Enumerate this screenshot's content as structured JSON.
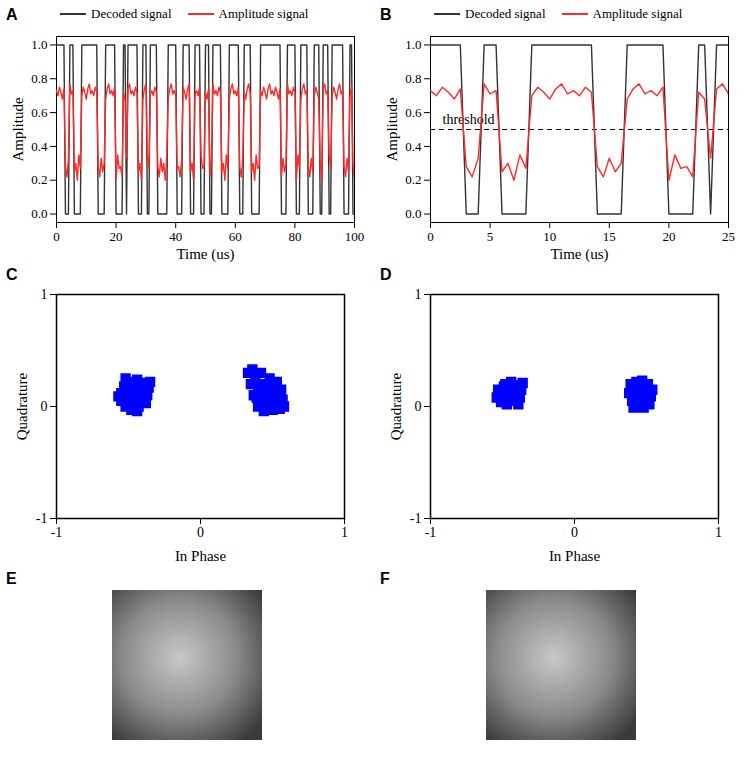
{
  "chart_data": [
    {
      "panel": "A",
      "type": "line",
      "x_label": "Time (us)",
      "y_label": "Amplitude",
      "xlim": [
        0,
        100
      ],
      "xticks": [
        0,
        20,
        40,
        60,
        80,
        100
      ],
      "ylim": [
        -0.05,
        1.05
      ],
      "yticks": [
        {
          "value": 0,
          "label": "0.0"
        },
        0.2,
        0.4,
        0.6,
        0.8,
        {
          "value": 1,
          "label": "1.0"
        }
      ],
      "legend": "top",
      "series": [
        {
          "name": "Decoded signal",
          "color": "#333333",
          "x": [
            0,
            2.5,
            3,
            4,
            4.5,
            5.5,
            6,
            8,
            8.5,
            13.5,
            14,
            16,
            16.5,
            19.5,
            20,
            22,
            22.5,
            23,
            23.5,
            24,
            27,
            27.5,
            28.5,
            29,
            30,
            30.5,
            31,
            31.5,
            33.5,
            34,
            37,
            37.5,
            40,
            40.5,
            42,
            42.5,
            44.5,
            45,
            46,
            46.5,
            48,
            48.5,
            49.5,
            50,
            51,
            51.5,
            52,
            52.5,
            55,
            55.5,
            57.5,
            58,
            61,
            61.5,
            62.5,
            63,
            65,
            65.5,
            68,
            68.5,
            75,
            75.5,
            77,
            77.5,
            80,
            80.5,
            81.5,
            82,
            84,
            84.5,
            86,
            86.5,
            88,
            88.5,
            89,
            89.5,
            91,
            91.5,
            92,
            92.5,
            96,
            96.5,
            98,
            98.5,
            99,
            99.5,
            100
          ],
          "values": [
            1,
            1,
            0,
            0,
            1,
            1,
            0,
            0,
            1,
            1,
            0,
            0,
            1,
            1,
            0,
            0,
            1,
            1,
            0,
            1,
            1,
            0,
            0,
            1,
            1,
            0,
            0,
            1,
            1,
            0,
            0,
            1,
            1,
            0,
            0,
            1,
            1,
            0,
            0,
            1,
            1,
            0,
            0,
            1,
            1,
            0,
            0,
            1,
            1,
            0,
            0,
            1,
            1,
            0,
            0,
            1,
            1,
            0,
            0,
            1,
            1,
            0,
            0,
            1,
            1,
            0,
            0,
            1,
            1,
            0,
            0,
            1,
            1,
            0,
            0,
            1,
            1,
            0,
            0,
            1,
            1,
            0,
            0,
            1,
            1,
            0,
            0
          ]
        },
        {
          "name": "Amplitude signal",
          "color": "#ff2a2a",
          "x": [
            0,
            0.5,
            1,
            1.5,
            2,
            2.5,
            3,
            3.5,
            4,
            4.5,
            5,
            5.5,
            6,
            6.5,
            7,
            7.5,
            8,
            8.5,
            9,
            9.5,
            10,
            10.5,
            11,
            11.5,
            12,
            12.5,
            13,
            13.5,
            14,
            14.5,
            15,
            15.5,
            16,
            16.5,
            17,
            17.5,
            18,
            18.5,
            19,
            19.5,
            20,
            20.5,
            21,
            21.5,
            22,
            22.5,
            23,
            23.5,
            24,
            24.5,
            25,
            25.5,
            26,
            26.5,
            27,
            27.5,
            28,
            28.5,
            29,
            29.5,
            30,
            30.5,
            31,
            31.5,
            32,
            32.5,
            33,
            33.5,
            34,
            34.5,
            35,
            35.5,
            36,
            36.5,
            37,
            37.5,
            38,
            38.5,
            39,
            39.5,
            40,
            40.5,
            41,
            41.5,
            42,
            42.5,
            43,
            43.5,
            44,
            44.5,
            45,
            45.5,
            46,
            46.5,
            47,
            47.5,
            48,
            48.5,
            49,
            49.5,
            50,
            50.5,
            51,
            51.5,
            52,
            52.5,
            53,
            53.5,
            54,
            54.5,
            55,
            55.5,
            56,
            56.5,
            57,
            57.5,
            58,
            58.5,
            59,
            59.5,
            60,
            60.5,
            61,
            61.5,
            62,
            62.5,
            63,
            63.5,
            64,
            64.5,
            65,
            65.5,
            66,
            66.5,
            67,
            67.5,
            68,
            68.5,
            69,
            69.5,
            70,
            70.5,
            71,
            71.5,
            72,
            72.5,
            73,
            73.5,
            74,
            74.5,
            75,
            75.5,
            76,
            76.5,
            77,
            77.5,
            78,
            78.5,
            79,
            79.5,
            80,
            80.5,
            81,
            81.5,
            82,
            82.5,
            83,
            83.5,
            84,
            84.5,
            85,
            85.5,
            86,
            86.5,
            87,
            87.5,
            88,
            88.5,
            89,
            89.5,
            90,
            90.5,
            91,
            91.5,
            92,
            92.5,
            93,
            93.5,
            94,
            94.5,
            95,
            95.5,
            96,
            96.5,
            97,
            97.5,
            98,
            98.5,
            99,
            99.5,
            100
          ],
          "values": [
            0.73,
            0.7,
            0.75,
            0.72,
            0.68,
            0.74,
            0.28,
            0.22,
            0.33,
            0.77,
            0.71,
            0.73,
            0.25,
            0.3,
            0.2,
            0.35,
            0.27,
            0.7,
            0.75,
            0.72,
            0.68,
            0.74,
            0.77,
            0.71,
            0.73,
            0.7,
            0.75,
            0.72,
            0.28,
            0.22,
            0.33,
            0.25,
            0.3,
            0.68,
            0.74,
            0.77,
            0.71,
            0.73,
            0.7,
            0.75,
            0.2,
            0.35,
            0.27,
            0.28,
            0.22,
            0.72,
            0.68,
            0.33,
            0.74,
            0.77,
            0.71,
            0.73,
            0.7,
            0.75,
            0.72,
            0.25,
            0.3,
            0.2,
            0.68,
            0.74,
            0.77,
            0.35,
            0.27,
            0.71,
            0.73,
            0.7,
            0.75,
            0.72,
            0.28,
            0.22,
            0.33,
            0.25,
            0.3,
            0.2,
            0.35,
            0.68,
            0.74,
            0.77,
            0.71,
            0.73,
            0.7,
            0.27,
            0.28,
            0.22,
            0.33,
            0.75,
            0.72,
            0.68,
            0.74,
            0.77,
            0.25,
            0.3,
            0.2,
            0.71,
            0.73,
            0.7,
            0.75,
            0.35,
            0.27,
            0.28,
            0.72,
            0.68,
            0.74,
            0.22,
            0.33,
            0.77,
            0.71,
            0.73,
            0.7,
            0.75,
            0.72,
            0.25,
            0.3,
            0.2,
            0.35,
            0.27,
            0.68,
            0.74,
            0.77,
            0.71,
            0.73,
            0.7,
            0.75,
            0.28,
            0.22,
            0.33,
            0.72,
            0.68,
            0.74,
            0.77,
            0.71,
            0.25,
            0.3,
            0.2,
            0.35,
            0.27,
            0.28,
            0.73,
            0.7,
            0.75,
            0.72,
            0.68,
            0.74,
            0.77,
            0.71,
            0.73,
            0.7,
            0.75,
            0.72,
            0.68,
            0.74,
            0.22,
            0.33,
            0.25,
            0.3,
            0.77,
            0.71,
            0.73,
            0.7,
            0.75,
            0.72,
            0.2,
            0.35,
            0.27,
            0.68,
            0.74,
            0.77,
            0.71,
            0.73,
            0.28,
            0.22,
            0.33,
            0.25,
            0.7,
            0.75,
            0.72,
            0.68,
            0.3,
            0.2,
            0.74,
            0.77,
            0.71,
            0.73,
            0.35,
            0.27,
            0.7,
            0.75,
            0.72,
            0.68,
            0.74,
            0.77,
            0.71,
            0.73,
            0.28,
            0.22,
            0.33,
            0.25,
            0.7,
            0.75,
            0.3,
            0.2
          ]
        }
      ]
    },
    {
      "panel": "B",
      "type": "line",
      "x_label": "Time (us)",
      "y_label": "Amplitude",
      "xlim": [
        0,
        25
      ],
      "xticks": [
        0,
        5,
        10,
        15,
        20,
        25
      ],
      "ylim": [
        -0.05,
        1.05
      ],
      "yticks": [
        {
          "value": 0,
          "label": "0.0"
        },
        0.2,
        0.4,
        0.6,
        0.8,
        {
          "value": 1,
          "label": "1.0"
        }
      ],
      "legend": "top",
      "annotations": [
        {
          "text": "threshold",
          "y": 0.5,
          "line_style": "dashed"
        }
      ],
      "series": [
        {
          "name": "Decoded signal",
          "color": "#333333",
          "x": [
            0,
            2.5,
            3,
            4,
            4.5,
            5.5,
            6,
            8,
            8.5,
            13.5,
            14,
            16,
            16.5,
            19.5,
            20,
            22,
            22.5,
            23,
            23.5,
            24,
            25
          ],
          "values": [
            1,
            1,
            0,
            0,
            1,
            1,
            0,
            0,
            1,
            1,
            0,
            0,
            1,
            1,
            0,
            0,
            1,
            1,
            0,
            1,
            1
          ]
        },
        {
          "name": "Amplitude signal",
          "color": "#ff2a2a",
          "x": [
            0,
            0.5,
            1,
            1.5,
            2,
            2.5,
            3,
            3.5,
            4,
            4.5,
            5,
            5.5,
            6,
            6.5,
            7,
            7.5,
            8,
            8.5,
            9,
            9.5,
            10,
            10.5,
            11,
            11.5,
            12,
            12.5,
            13,
            13.5,
            14,
            14.5,
            15,
            15.5,
            16,
            16.5,
            17,
            17.5,
            18,
            18.5,
            19,
            19.5,
            20,
            20.5,
            21,
            21.5,
            22,
            22.5,
            23,
            23.5,
            24,
            24.5,
            25
          ],
          "values": [
            0.73,
            0.7,
            0.75,
            0.72,
            0.68,
            0.74,
            0.28,
            0.22,
            0.33,
            0.77,
            0.71,
            0.73,
            0.25,
            0.3,
            0.2,
            0.35,
            0.27,
            0.7,
            0.75,
            0.72,
            0.68,
            0.74,
            0.77,
            0.71,
            0.73,
            0.7,
            0.75,
            0.72,
            0.28,
            0.22,
            0.33,
            0.25,
            0.3,
            0.68,
            0.74,
            0.77,
            0.71,
            0.73,
            0.7,
            0.75,
            0.2,
            0.35,
            0.27,
            0.28,
            0.22,
            0.72,
            0.68,
            0.33,
            0.74,
            0.77,
            0.71
          ]
        }
      ]
    },
    {
      "panel": "C",
      "type": "scatter",
      "x_label": "In Phase",
      "y_label": "Quadrature",
      "xlim": [
        -1,
        1
      ],
      "xticks": [
        -1,
        0,
        1
      ],
      "ylim": [
        -1,
        1
      ],
      "yticks": [
        -1,
        0,
        1
      ],
      "color": "#0000ff",
      "marker": "square",
      "x": [
        -0.55,
        -0.55,
        -0.53,
        -0.52,
        -0.5,
        -0.5,
        -0.5,
        -0.48,
        -0.47,
        -0.46,
        -0.45,
        -0.44,
        -0.43,
        -0.42,
        -0.41,
        -0.4,
        -0.38,
        -0.37,
        -0.36,
        -0.35,
        -0.57,
        -0.49,
        -0.39,
        -0.44,
        -0.52,
        0.33,
        0.36,
        0.35,
        0.37,
        0.38,
        0.4,
        0.4,
        0.42,
        0.43,
        0.44,
        0.45,
        0.46,
        0.47,
        0.48,
        0.49,
        0.5,
        0.51,
        0.52,
        0.53,
        0.54,
        0.55,
        0.56,
        0.57,
        0.58,
        0.39
      ],
      "y": [
        0.05,
        0.12,
        0.18,
        0.0,
        0.08,
        0.15,
        0.22,
        -0.03,
        0.04,
        0.11,
        0.18,
        0.24,
        0.0,
        0.07,
        0.14,
        0.21,
        0.03,
        0.1,
        0.17,
        0.22,
        0.09,
        0.2,
        0.06,
        -0.04,
        0.25,
        0.3,
        0.33,
        0.2,
        0.1,
        0.25,
        0.0,
        0.17,
        0.3,
        0.08,
        -0.04,
        0.2,
        0.13,
        0.02,
        0.25,
        0.08,
        -0.03,
        0.17,
        0.04,
        0.22,
        0.11,
        -0.02,
        0.15,
        0.06,
        0.0,
        0.08
      ]
    },
    {
      "panel": "D",
      "type": "scatter",
      "x_label": "In Phase",
      "y_label": "Quadrature",
      "xlim": [
        -1,
        1
      ],
      "xticks": [
        -1,
        0,
        1
      ],
      "ylim": [
        -1,
        1
      ],
      "yticks": [
        -1,
        0,
        1
      ],
      "color": "#0000ff",
      "marker": "square",
      "x": [
        -0.54,
        -0.53,
        -0.51,
        -0.5,
        -0.49,
        -0.47,
        -0.46,
        -0.45,
        -0.44,
        -0.42,
        -0.41,
        -0.4,
        -0.38,
        -0.37,
        -0.36,
        -0.48,
        -0.39,
        0.38,
        0.39,
        0.4,
        0.42,
        0.43,
        0.44,
        0.45,
        0.46,
        0.48,
        0.49,
        0.5,
        0.51,
        0.52,
        0.53,
        0.54,
        0.41,
        0.47
      ],
      "y": [
        0.08,
        0.15,
        0.04,
        0.11,
        0.18,
        0.02,
        0.09,
        0.16,
        0.22,
        0.05,
        0.12,
        0.19,
        0.08,
        0.15,
        0.21,
        0.2,
        0.02,
        0.12,
        0.2,
        0.05,
        0.15,
        0.22,
        0.0,
        0.09,
        0.17,
        -0.01,
        0.06,
        0.13,
        0.2,
        0.02,
        0.09,
        0.15,
        -0.01,
        0.23
      ]
    },
    {
      "panel": "E",
      "type": "image"
    },
    {
      "panel": "F",
      "type": "image"
    }
  ]
}
